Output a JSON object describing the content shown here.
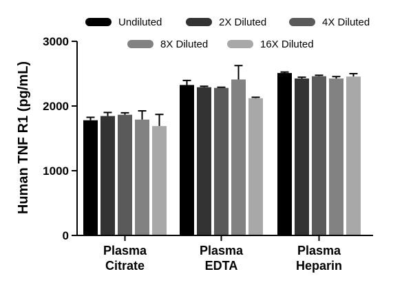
{
  "chart_data": {
    "type": "bar",
    "ylabel": "Human TNF R1 (pg/mL)",
    "xlabel": "",
    "ylim": [
      0,
      3000
    ],
    "yticks": [
      0,
      1000,
      2000,
      3000
    ],
    "categories": [
      [
        "Plasma",
        "Citrate"
      ],
      [
        "Plasma",
        "EDTA"
      ],
      [
        "Plasma",
        "Heparin"
      ]
    ],
    "legend_position": "top",
    "series": [
      {
        "name": "Undiluted",
        "color": "#000000",
        "values": [
          1780,
          2325,
          2510
        ],
        "errors": [
          45,
          70,
          15
        ]
      },
      {
        "name": "2X Diluted",
        "color": "#333333",
        "values": [
          1845,
          2290,
          2425
        ],
        "errors": [
          55,
          15,
          20
        ]
      },
      {
        "name": "4X Diluted",
        "color": "#5a5a5a",
        "values": [
          1865,
          2280,
          2460
        ],
        "errors": [
          30,
          10,
          15
        ]
      },
      {
        "name": "8X Diluted",
        "color": "#828282",
        "values": [
          1790,
          2410,
          2425
        ],
        "errors": [
          135,
          215,
          30
        ]
      },
      {
        "name": "16X Diluted",
        "color": "#a8a8a8",
        "values": [
          1690,
          2120,
          2455
        ],
        "errors": [
          180,
          15,
          45
        ]
      }
    ]
  }
}
